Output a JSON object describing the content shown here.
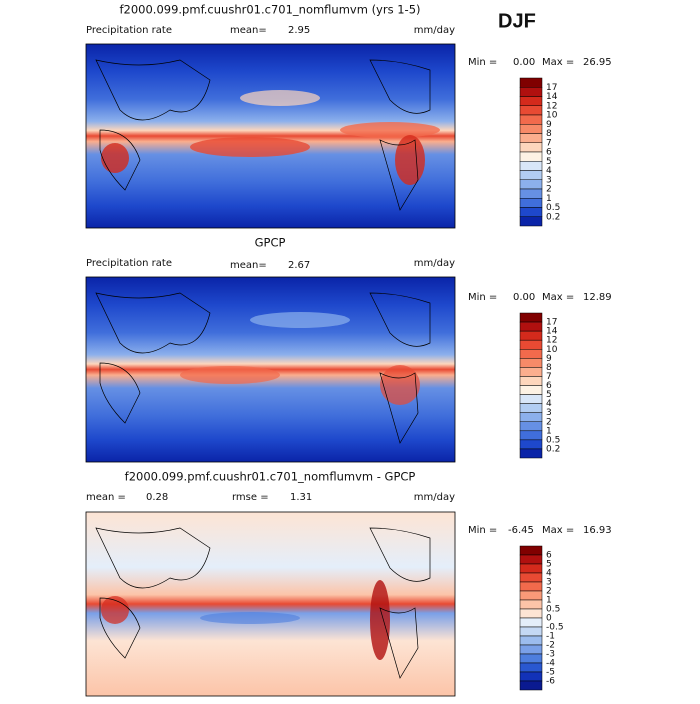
{
  "season": "DJF",
  "panels": [
    {
      "title": "f2000.099.pmf.cuushr01.c701_nomflumvm (yrs 1-5)",
      "left_label": "Precipitation rate",
      "stat1_label": "mean=",
      "stat1_value": "2.95",
      "units": "mm/day",
      "min_label": "Min =",
      "min_value": "0.00",
      "max_label": "Max =",
      "max_value": "26.95",
      "colorbar": {
        "labels": [
          17,
          14,
          12,
          10,
          9,
          8,
          7,
          6,
          5,
          4,
          3,
          2,
          1,
          0.5,
          0.2
        ],
        "colors": [
          "#800000",
          "#b0100f",
          "#d42a1c",
          "#e84a33",
          "#f26a4c",
          "#f78a68",
          "#fbae8e",
          "#fdd6bc",
          "#fdf2e4",
          "#d8e6f8",
          "#b2cdf2",
          "#8cb0ec",
          "#6690e4",
          "#406edb",
          "#1e48cc",
          "#0a24a8"
        ]
      }
    },
    {
      "title": "GPCP",
      "left_label": "Precipitation rate",
      "stat1_label": "mean=",
      "stat1_value": "2.67",
      "units": "mm/day",
      "min_label": "Min =",
      "min_value": "0.00",
      "max_label": "Max =",
      "max_value": "12.89",
      "colorbar": {
        "labels": [
          17,
          14,
          12,
          10,
          9,
          8,
          7,
          6,
          5,
          4,
          3,
          2,
          1,
          0.5,
          0.2
        ],
        "colors": [
          "#800000",
          "#b0100f",
          "#d42a1c",
          "#e84a33",
          "#f26a4c",
          "#f78a68",
          "#fbae8e",
          "#fdd6bc",
          "#fdf2e4",
          "#d8e6f8",
          "#b2cdf2",
          "#8cb0ec",
          "#6690e4",
          "#406edb",
          "#1e48cc",
          "#0a24a8"
        ]
      }
    },
    {
      "title": "f2000.099.pmf.cuushr01.c701_nomflumvm - GPCP",
      "left_label": "mean =",
      "left_value": "0.28",
      "stat1_label": "rmse =",
      "stat1_value": "1.31",
      "units": "mm/day",
      "min_label": "Min =",
      "min_value": "-6.45",
      "max_label": "Max =",
      "max_value": "16.93",
      "colorbar": {
        "labels": [
          6,
          5,
          4,
          3,
          2,
          1,
          0.5,
          0,
          -0.5,
          -1,
          -2,
          -3,
          -4,
          -5,
          -6
        ],
        "colors": [
          "#800000",
          "#b0100f",
          "#d42a1c",
          "#e84a33",
          "#f26a4c",
          "#f99a78",
          "#fcc4a8",
          "#fde4d4",
          "#e4eefa",
          "#c4d8f4",
          "#9cbcee",
          "#7aa0e8",
          "#4e7ede",
          "#2a58d0",
          "#1232b8",
          "#0a1a90"
        ]
      }
    }
  ]
}
